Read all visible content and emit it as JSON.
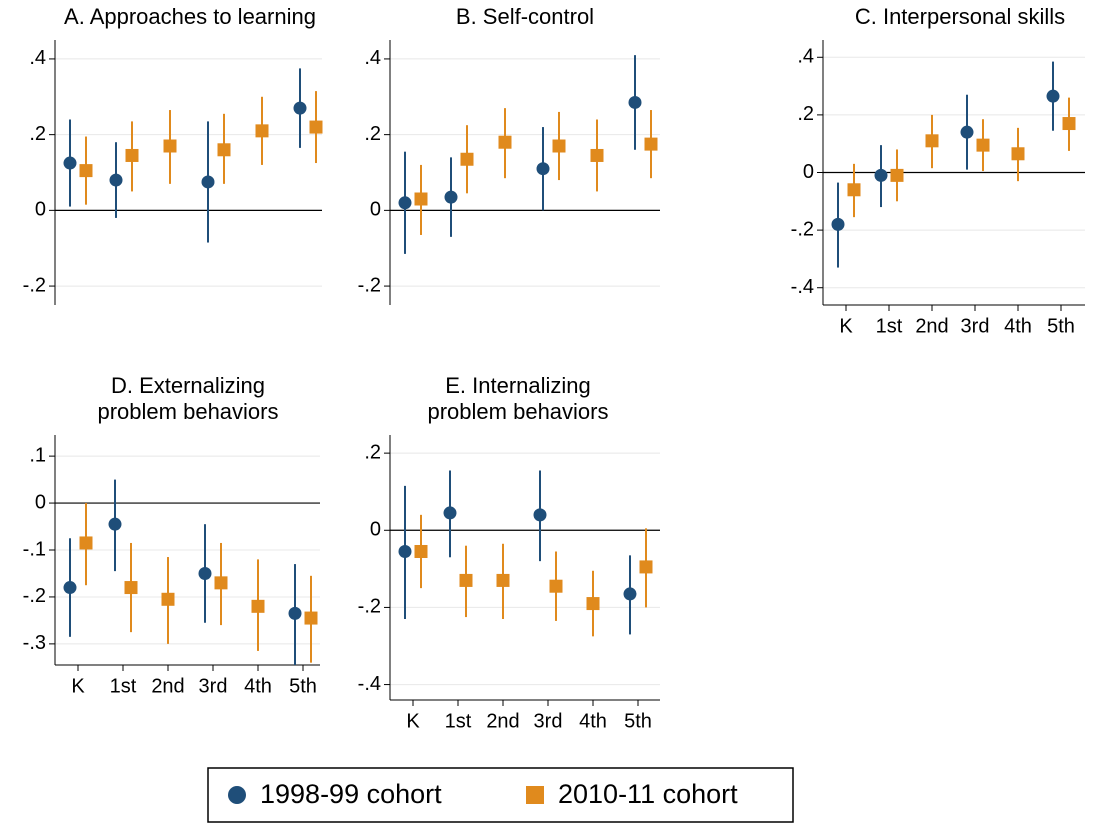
{
  "chart_data": [
    {
      "type": "errorbar",
      "title": [
        "A. Approaches to learning"
      ],
      "categories": [
        null,
        null,
        null,
        null,
        null,
        null
      ],
      "series": [
        {
          "values": [
            0.125,
            0.08,
            null,
            0.075,
            null,
            0.27
          ],
          "lower": [
            0.01,
            -0.02,
            null,
            -0.085,
            null,
            0.165
          ],
          "upper": [
            0.24,
            0.18,
            null,
            0.235,
            null,
            0.375
          ]
        },
        {
          "values": [
            0.105,
            0.145,
            0.17,
            0.16,
            0.21,
            0.22
          ],
          "lower": [
            0.015,
            0.05,
            0.07,
            0.07,
            0.12,
            0.125
          ],
          "upper": [
            0.195,
            0.235,
            0.265,
            0.255,
            0.3,
            0.315
          ]
        }
      ],
      "ylim": [
        -0.25,
        0.45
      ],
      "yticks": [
        {
          "value": -0.2,
          "label": "-.2"
        },
        0,
        {
          "value": 0.2,
          "label": ".2"
        },
        {
          "value": 0.4,
          "label": ".4"
        }
      ],
      "hline": 0,
      "grid": true
    },
    {
      "type": "errorbar",
      "title": [
        "B. Self-control"
      ],
      "categories": [
        null,
        null,
        null,
        null,
        null,
        null
      ],
      "series": [
        {
          "values": [
            0.02,
            0.035,
            null,
            0.11,
            null,
            0.285
          ],
          "lower": [
            -0.115,
            -0.07,
            null,
            0,
            null,
            0.16
          ],
          "upper": [
            0.155,
            0.14,
            null,
            0.22,
            null,
            0.41
          ]
        },
        {
          "values": [
            0.03,
            0.135,
            0.18,
            0.17,
            0.145,
            0.175
          ],
          "lower": [
            -0.065,
            0.045,
            0.085,
            0.08,
            0.05,
            0.085
          ],
          "upper": [
            0.12,
            0.225,
            0.27,
            0.26,
            0.24,
            0.265
          ]
        }
      ],
      "ylim": [
        -0.25,
        0.45
      ],
      "yticks": [
        {
          "value": -0.2,
          "label": "-.2"
        },
        0,
        {
          "value": 0.2,
          "label": ".2"
        },
        {
          "value": 0.4,
          "label": ".4"
        }
      ],
      "hline": 0,
      "grid": true
    },
    {
      "type": "errorbar",
      "title": [
        "C. Interpersonal skills"
      ],
      "categories": [
        "K",
        "1st",
        "2nd",
        "3rd",
        "4th",
        "5th"
      ],
      "series": [
        {
          "values": [
            -0.18,
            -0.01,
            null,
            0.14,
            null,
            0.265
          ],
          "lower": [
            -0.33,
            -0.12,
            null,
            0.01,
            null,
            0.145
          ],
          "upper": [
            -0.035,
            0.095,
            null,
            0.27,
            null,
            0.385
          ]
        },
        {
          "values": [
            -0.06,
            -0.01,
            0.11,
            0.095,
            0.065,
            0.17
          ],
          "lower": [
            -0.155,
            -0.1,
            0.015,
            0.005,
            -0.03,
            0.075
          ],
          "upper": [
            0.03,
            0.08,
            0.2,
            0.185,
            0.155,
            0.26
          ]
        }
      ],
      "ylim": [
        -0.46,
        0.46
      ],
      "yticks": [
        {
          "value": -0.4,
          "label": "-.4"
        },
        {
          "value": -0.2,
          "label": "-.2"
        },
        0,
        {
          "value": 0.2,
          "label": ".2"
        },
        {
          "value": 0.4,
          "label": ".4"
        }
      ],
      "hline": 0,
      "grid": true
    },
    {
      "type": "errorbar",
      "title": [
        "D. Externalizing",
        "problem behaviors"
      ],
      "categories": [
        "K",
        "1st",
        "2nd",
        "3rd",
        "4th",
        "5th"
      ],
      "series": [
        {
          "values": [
            -0.18,
            -0.045,
            null,
            -0.15,
            null,
            -0.235
          ],
          "lower": [
            -0.285,
            -0.145,
            null,
            -0.255,
            null,
            -0.345
          ],
          "upper": [
            -0.075,
            0.05,
            null,
            -0.045,
            null,
            -0.13
          ]
        },
        {
          "values": [
            -0.085,
            -0.18,
            -0.205,
            -0.17,
            -0.22,
            -0.245
          ],
          "lower": [
            -0.175,
            -0.275,
            -0.3,
            -0.26,
            -0.315,
            -0.34
          ],
          "upper": [
            0,
            -0.085,
            -0.115,
            -0.085,
            -0.12,
            -0.155
          ]
        }
      ],
      "ylim": [
        -0.345,
        0.145
      ],
      "yticks": [
        {
          "value": -0.3,
          "label": "-.3"
        },
        {
          "value": -0.2,
          "label": "-.2"
        },
        {
          "value": -0.1,
          "label": "-.1"
        },
        0,
        {
          "value": 0.1,
          "label": ".1"
        }
      ],
      "hline": 0,
      "grid": true
    },
    {
      "type": "errorbar",
      "title": [
        "E. Internalizing",
        "problem behaviors"
      ],
      "categories": [
        "K",
        "1st",
        "2nd",
        "3rd",
        "4th",
        "5th"
      ],
      "series": [
        {
          "values": [
            -0.055,
            0.045,
            null,
            0.04,
            null,
            -0.165
          ],
          "lower": [
            -0.23,
            -0.07,
            null,
            -0.08,
            null,
            -0.27
          ],
          "upper": [
            0.115,
            0.155,
            null,
            0.155,
            null,
            -0.065
          ]
        },
        {
          "values": [
            -0.055,
            -0.13,
            -0.13,
            -0.145,
            -0.19,
            -0.095
          ],
          "lower": [
            -0.15,
            -0.225,
            -0.23,
            -0.235,
            -0.275,
            -0.2
          ],
          "upper": [
            0.04,
            -0.04,
            -0.035,
            -0.055,
            -0.105,
            0.005
          ]
        }
      ],
      "ylim": [
        -0.44,
        0.247
      ],
      "yticks": [
        {
          "value": -0.4,
          "label": "-.4"
        },
        {
          "value": -0.2,
          "label": "-.2"
        },
        0,
        {
          "value": 0.2,
          "label": ".2"
        }
      ],
      "hline": 0,
      "grid": true
    }
  ],
  "legend": {
    "position": "bottom",
    "entries": [
      {
        "name": "1998-99 cohort",
        "color": "#1f4e79",
        "marker": "circle"
      },
      {
        "name": "2010-11 cohort",
        "color": "#e08a1d",
        "marker": "square"
      }
    ]
  }
}
